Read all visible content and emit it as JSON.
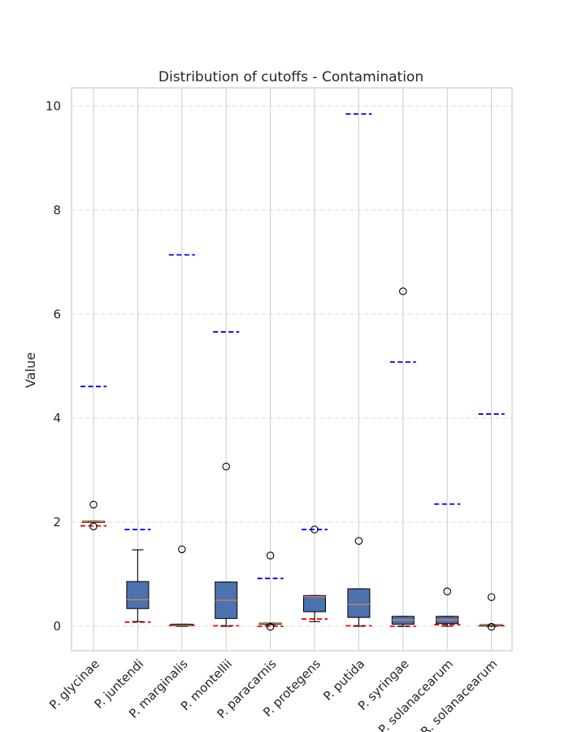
{
  "chart_data": {
    "type": "box",
    "title": "Distribution of cutoffs - Contamination",
    "xlabel": "",
    "ylabel": "Value",
    "ylim": [
      -0.47,
      10.35
    ],
    "yticks": [
      0,
      2,
      4,
      6,
      8,
      10
    ],
    "grid": "dashed horizontal and vertical",
    "categories": [
      "P. glycinae",
      "P. juntendi",
      "P. marginalis",
      "P. montellii",
      "P. paracarnis",
      "P. protegens",
      "P. putida",
      "P. syringae",
      "P. solanacearum",
      "R. solanacearum"
    ],
    "boxes": [
      {
        "whisker_low": 2.0,
        "q1": 2.0,
        "median": 2.01,
        "q3": 2.02,
        "whisker_high": 2.02,
        "outliers": [
          2.34,
          1.92
        ],
        "red_line": 1.93,
        "blue_line": 4.61
      },
      {
        "whisker_low": 0.09,
        "q1": 0.34,
        "median": 0.51,
        "q3": 0.86,
        "whisker_high": 1.47,
        "outliers": [],
        "red_line": 0.08,
        "blue_line": 1.86
      },
      {
        "whisker_low": 0.0,
        "q1": 0.01,
        "median": 0.02,
        "q3": 0.04,
        "whisker_high": 0.04,
        "outliers": [
          1.48
        ],
        "red_line": 0.02,
        "blue_line": 7.14
      },
      {
        "whisker_low": 0.0,
        "q1": 0.15,
        "median": 0.5,
        "q3": 0.85,
        "whisker_high": 0.85,
        "outliers": [
          3.07
        ],
        "red_line": 0.01,
        "blue_line": 5.66
      },
      {
        "whisker_low": 0.03,
        "q1": 0.04,
        "median": 0.05,
        "q3": 0.06,
        "whisker_high": 0.06,
        "outliers": [
          1.36,
          -0.01
        ],
        "red_line": 0.0,
        "blue_line": 0.92
      },
      {
        "whisker_low": 0.09,
        "q1": 0.28,
        "median": 0.57,
        "q3": 0.59,
        "whisker_high": 0.59,
        "outliers": [
          1.86
        ],
        "red_line": 0.14,
        "blue_line": 1.86
      },
      {
        "whisker_low": 0.0,
        "q1": 0.17,
        "median": 0.42,
        "q3": 0.72,
        "whisker_high": 0.72,
        "outliers": [
          1.64
        ],
        "red_line": 0.01,
        "blue_line": 9.85
      },
      {
        "whisker_low": 0.0,
        "q1": 0.04,
        "median": 0.12,
        "q3": 0.19,
        "whisker_high": 0.19,
        "outliers": [
          6.44
        ],
        "red_line": 0.0,
        "blue_line": 5.08
      },
      {
        "whisker_low": 0.0,
        "q1": 0.05,
        "median": 0.12,
        "q3": 0.19,
        "whisker_high": 0.19,
        "outliers": [
          0.67
        ],
        "red_line": 0.03,
        "blue_line": 2.35
      },
      {
        "whisker_low": 0.0,
        "q1": 0.01,
        "median": 0.02,
        "q3": 0.03,
        "whisker_high": 0.03,
        "outliers": [
          0.56,
          -0.01
        ],
        "red_line": 0.01,
        "blue_line": 4.08
      }
    ],
    "colors": {
      "box_fill": "#4c72b0",
      "median": "#dd8452",
      "red_line": "#ff0000",
      "blue_line": "#0000ff",
      "grid": "#dddddd",
      "spine": "#cccccc",
      "text": "#262626"
    }
  }
}
